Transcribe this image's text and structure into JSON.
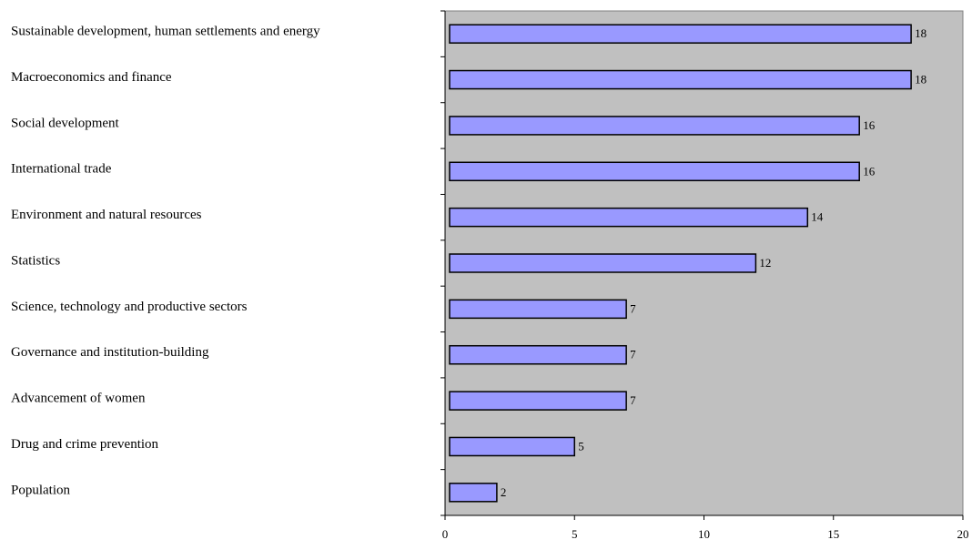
{
  "chart_data": {
    "type": "bar",
    "orientation": "horizontal",
    "categories": [
      "Sustainable development, human settlements and energy",
      "Macroeconomics and finance",
      "Social development",
      "International trade",
      "Environment and natural resources",
      "Statistics",
      "Science, technology and productive sectors",
      "Governance and institution-building",
      "Advancement of women",
      "Drug and crime prevention",
      "Population"
    ],
    "values": [
      18,
      18,
      16,
      16,
      14,
      12,
      7,
      7,
      7,
      5,
      2
    ],
    "data_labels": [
      "18",
      "18",
      "16",
      "16",
      "14",
      "12",
      "7",
      "7",
      "7",
      "5",
      "2"
    ],
    "xlim": [
      0,
      20
    ],
    "xticks": [
      0,
      5,
      10,
      15,
      20
    ],
    "xtick_labels": [
      "0",
      "5",
      "10",
      "15",
      "20"
    ],
    "title": "",
    "xlabel": "",
    "ylabel": "",
    "grid": false,
    "colors": {
      "bar_fill": "#9999ff",
      "bar_stroke": "#000000",
      "plot_background": "#c0c0c0",
      "plot_border": "#808080"
    }
  }
}
